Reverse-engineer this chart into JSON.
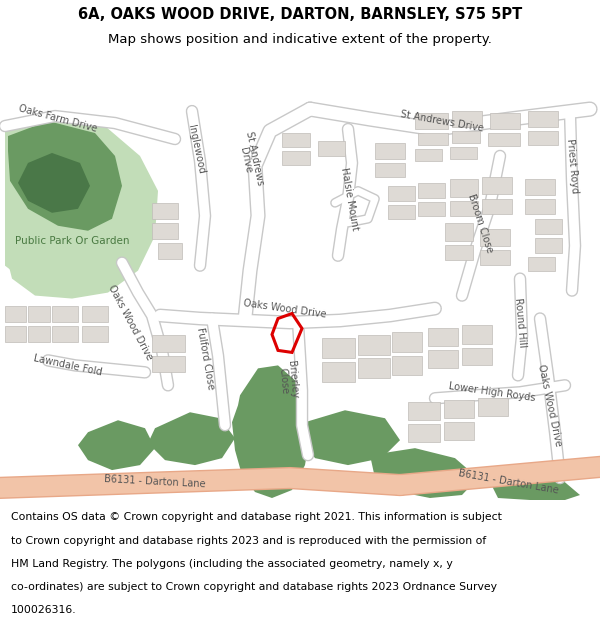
{
  "title_line1": "6A, OAKS WOOD DRIVE, DARTON, BARNSLEY, S75 5PT",
  "title_line2": "Map shows position and indicative extent of the property.",
  "footer": "Contains OS data © Crown copyright and database right 2021. This information is subject to Crown copyright and database rights 2023 and is reproduced with the permission of HM Land Registry. The polygons (including the associated geometry, namely x, y co-ordinates) are subject to Crown copyright and database rights 2023 Ordnance Survey 100026316.",
  "bg_color": "#eeebe5",
  "road_color": "#ffffff",
  "road_border": "#c8c8c8",
  "main_road_color": "#f2c4a8",
  "main_road_border": "#e8a888",
  "park_dark": "#6a9a62",
  "park_light": "#c2ddb8",
  "building_fill": "#dedad5",
  "building_stroke": "#c0bcb8",
  "red_plot_color": "#dd0000",
  "title_fontsize": 10.5,
  "subtitle_fontsize": 9.5,
  "footer_fontsize": 7.8,
  "label_fontsize": 7.0,
  "label_color": "#555555",
  "park_label_color": "#4a7a42"
}
